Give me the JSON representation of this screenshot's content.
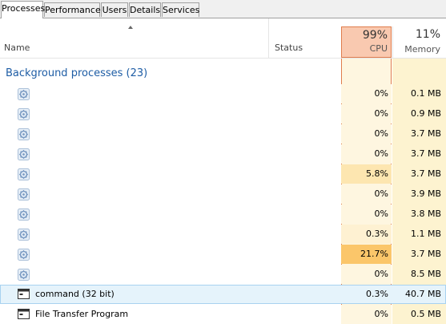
{
  "tabs": [
    {
      "label": "Processes",
      "active": true
    },
    {
      "label": "Performance",
      "active": false
    },
    {
      "label": "Users",
      "active": false
    },
    {
      "label": "Details",
      "active": false
    },
    {
      "label": "Services",
      "active": false
    }
  ],
  "columns": {
    "name": "Name",
    "status": "Status",
    "cpu_total": "99%",
    "cpu": "CPU",
    "memory_total": "11%",
    "memory": "Memory"
  },
  "group": {
    "title": "Background processes (23)"
  },
  "rows": [
    {
      "name": "",
      "icon": "gear-icon",
      "cpu": "0%",
      "memory": "0.1 MB",
      "cpu_color": "#fef6e0",
      "mem_color": "#fdf3d0"
    },
    {
      "name": "",
      "icon": "gear-icon",
      "cpu": "0%",
      "memory": "0.9 MB",
      "cpu_color": "#fef6e0",
      "mem_color": "#fdf3d0"
    },
    {
      "name": "",
      "icon": "gear-icon",
      "cpu": "0%",
      "memory": "3.7 MB",
      "cpu_color": "#fef6e0",
      "mem_color": "#fdf3d0"
    },
    {
      "name": "",
      "icon": "gear-icon",
      "cpu": "0%",
      "memory": "3.7 MB",
      "cpu_color": "#fef6e0",
      "mem_color": "#fdf3d0"
    },
    {
      "name": "",
      "icon": "gear-icon",
      "cpu": "5.8%",
      "memory": "3.7 MB",
      "cpu_color": "#fde6b0",
      "mem_color": "#fdf3d0"
    },
    {
      "name": "",
      "icon": "gear-icon",
      "cpu": "0%",
      "memory": "3.9 MB",
      "cpu_color": "#fef6e0",
      "mem_color": "#fdf3d0"
    },
    {
      "name": "",
      "icon": "gear-icon",
      "cpu": "0%",
      "memory": "3.8 MB",
      "cpu_color": "#fef6e0",
      "mem_color": "#fdf3d0"
    },
    {
      "name": "",
      "icon": "gear-icon",
      "cpu": "0.3%",
      "memory": "1.1 MB",
      "cpu_color": "#fef1d2",
      "mem_color": "#fdf3d0"
    },
    {
      "name": "",
      "icon": "gear-icon",
      "cpu": "21.7%",
      "memory": "3.7 MB",
      "cpu_color": "#fbc66a",
      "mem_color": "#fdf3d0"
    },
    {
      "name": "",
      "icon": "gear-icon",
      "cpu": "0%",
      "memory": "8.5 MB",
      "cpu_color": "#fef6e0",
      "mem_color": "#fdf3d0"
    },
    {
      "name": "command (32 bit)",
      "icon": "app-icon",
      "cpu": "0.3%",
      "memory": "40.7 MB",
      "cpu_color": "#fef1d2",
      "mem_color": "#fcefc4",
      "selected": true
    },
    {
      "name": "File Transfer Program",
      "icon": "app-icon",
      "cpu": "0%",
      "memory": "0.5 MB",
      "cpu_color": "#fef6e0",
      "mem_color": "#fdf3d0"
    }
  ]
}
